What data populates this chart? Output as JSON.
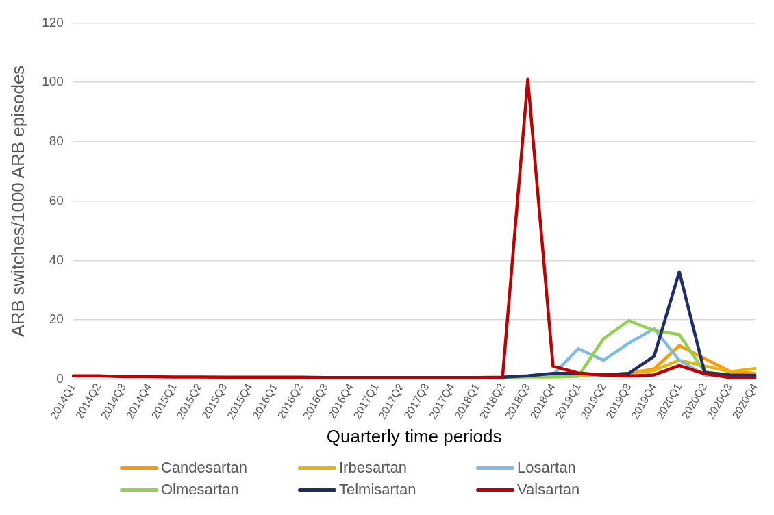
{
  "chart_data": {
    "type": "line",
    "xlabel": "Quarterly time periods",
    "ylabel": "ARB switches/1000 ARB episodes",
    "categories": [
      "2014Q1",
      "2014Q2",
      "2014Q3",
      "2014Q4",
      "2015Q1",
      "2015Q2",
      "2015Q3",
      "2015Q4",
      "2016Q1",
      "2016Q2",
      "2016Q3",
      "2016Q4",
      "2017Q1",
      "2017Q2",
      "2017Q3",
      "2017Q4",
      "2018Q1",
      "2018Q2",
      "2018Q3",
      "2018Q4",
      "2019Q1",
      "2019Q2",
      "2019Q3",
      "2019Q4",
      "2020Q1",
      "2020Q2",
      "2020Q3",
      "2020Q4"
    ],
    "series": [
      {
        "name": "Candesartan",
        "color": "#ff9900",
        "values": [
          null,
          null,
          null,
          null,
          null,
          null,
          null,
          null,
          null,
          null,
          null,
          null,
          null,
          null,
          null,
          null,
          null,
          null,
          null,
          1.2,
          1.5,
          1.5,
          2,
          3.5,
          11.4,
          7,
          2.7,
          2
        ]
      },
      {
        "name": "Irbesartan",
        "color": "#e6b412",
        "values": [
          null,
          null,
          null,
          null,
          null,
          null,
          null,
          null,
          null,
          null,
          null,
          null,
          null,
          null,
          null,
          null,
          null,
          null,
          null,
          1.2,
          1.2,
          1.5,
          2,
          3,
          6.4,
          4.5,
          2.6,
          3.6
        ]
      },
      {
        "name": "Losartan",
        "color": "#7fbde0",
        "values": [
          null,
          null,
          null,
          null,
          null,
          null,
          null,
          null,
          null,
          null,
          null,
          null,
          null,
          null,
          null,
          null,
          null,
          0.5,
          1,
          1.5,
          10.3,
          6.4,
          12.2,
          17,
          6.4,
          1.5,
          1,
          1
        ]
      },
      {
        "name": "Olmesartan",
        "color": "#92d050",
        "values": [
          null,
          null,
          null,
          null,
          null,
          null,
          null,
          null,
          null,
          null,
          null,
          null,
          null,
          null,
          null,
          null,
          null,
          0.6,
          0.8,
          0.8,
          1,
          13.7,
          19.8,
          16.4,
          15.1,
          2.5,
          1.5,
          1.2
        ]
      },
      {
        "name": "Telmisartan",
        "color": "#1f2d6b",
        "values": [
          null,
          null,
          null,
          null,
          null,
          null,
          null,
          null,
          null,
          null,
          null,
          null,
          null,
          null,
          null,
          null,
          null,
          0.7,
          1.2,
          2,
          2,
          1.5,
          2,
          7.7,
          36.2,
          2.3,
          1.5,
          1.3
        ]
      },
      {
        "name": "Valsartan",
        "color": "#c00000",
        "values": [
          1.2,
          1.2,
          0.9,
          0.9,
          0.8,
          0.8,
          0.7,
          0.7,
          0.7,
          0.7,
          0.6,
          0.6,
          0.6,
          0.6,
          0.6,
          0.6,
          0.6,
          0.7,
          101,
          4.4,
          2.1,
          1.5,
          1.1,
          1.5,
          4.6,
          1.9,
          0.6,
          0.6
        ]
      }
    ],
    "ylim": [
      0,
      120
    ],
    "yticks": [
      0,
      20,
      40,
      60,
      80,
      100,
      120
    ],
    "grid": "y",
    "legend": "bottom",
    "line_style": "solid",
    "marker": "none"
  }
}
